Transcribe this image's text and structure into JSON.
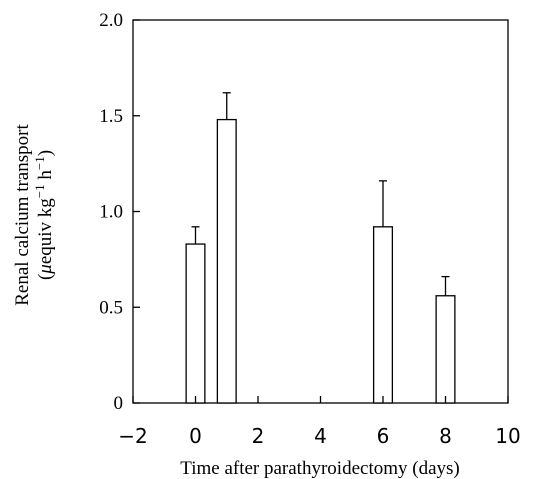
{
  "chart_data": {
    "type": "bar",
    "xlabel": "Time after parathyroidectomy (days)",
    "ylabel_line1": "Renal calcium transport",
    "ylabel_line2_parts": [
      "(",
      "μ",
      "equiv kg",
      "−1",
      " h",
      "−1",
      ")"
    ],
    "xlim": [
      -2,
      10
    ],
    "ylim": [
      0,
      2.0
    ],
    "x_ticks": [
      -2,
      0,
      2,
      4,
      6,
      8,
      10
    ],
    "x_tick_labels": [
      "−2",
      "0",
      "2",
      "4",
      "6",
      "8",
      "10"
    ],
    "y_ticks": [
      0,
      0.5,
      1.0,
      1.5,
      2.0
    ],
    "y_tick_labels": [
      "0",
      "0.5",
      "1.0",
      "1.5",
      "2.0"
    ],
    "bar_width_days": 0.6,
    "bars": [
      {
        "x": 0,
        "value": 0.83,
        "error": 0.09
      },
      {
        "x": 1,
        "value": 1.48,
        "error": 0.14
      },
      {
        "x": 6,
        "value": 0.92,
        "error": 0.24
      },
      {
        "x": 8,
        "value": 0.56,
        "error": 0.1
      }
    ],
    "grid": false,
    "colors": {
      "bar_fill": "#ffffff",
      "stroke": "#000000"
    }
  }
}
